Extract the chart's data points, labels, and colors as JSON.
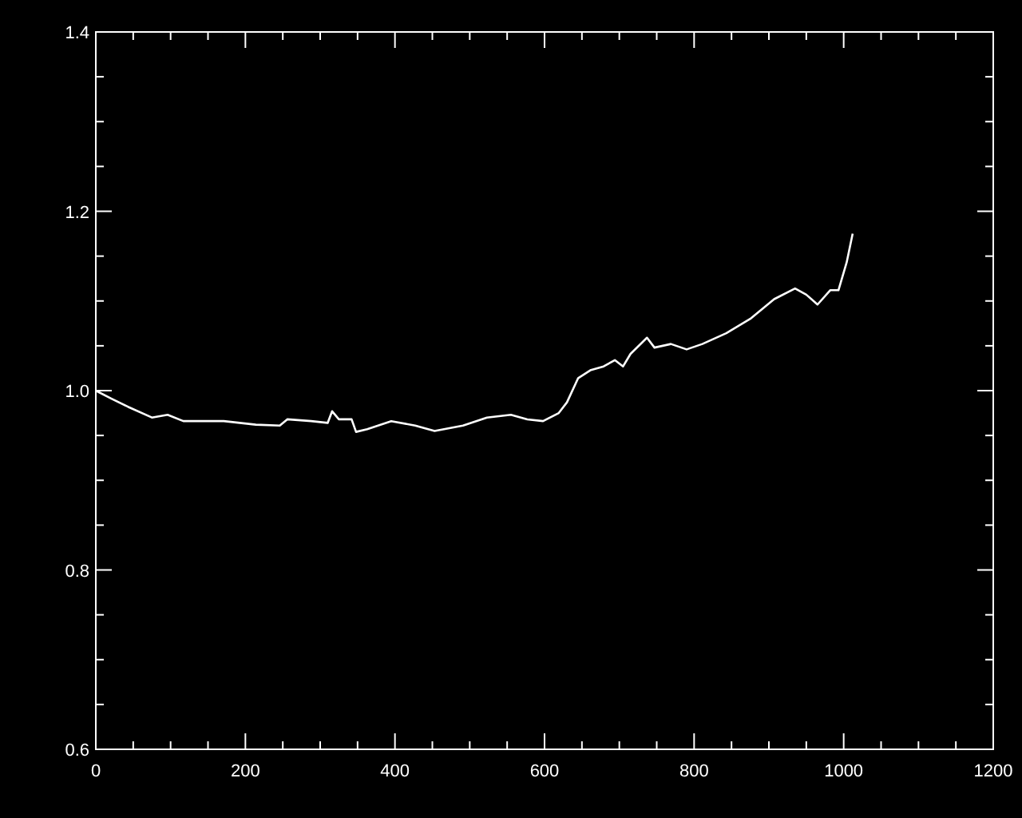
{
  "chart_data": {
    "type": "line",
    "xlim": [
      0,
      1200
    ],
    "ylim": [
      0.6,
      1.4
    ],
    "xticks": [
      0,
      {
        "value": 50,
        "label": null
      },
      {
        "value": 100,
        "label": null
      },
      {
        "value": 150,
        "label": null
      },
      200,
      {
        "value": 250,
        "label": null
      },
      {
        "value": 300,
        "label": null
      },
      {
        "value": 350,
        "label": null
      },
      400,
      {
        "value": 450,
        "label": null
      },
      {
        "value": 500,
        "label": null
      },
      {
        "value": 550,
        "label": null
      },
      600,
      {
        "value": 650,
        "label": null
      },
      {
        "value": 700,
        "label": null
      },
      {
        "value": 750,
        "label": null
      },
      800,
      {
        "value": 850,
        "label": null
      },
      {
        "value": 900,
        "label": null
      },
      {
        "value": 950,
        "label": null
      },
      1000,
      {
        "value": 1050,
        "label": null
      },
      {
        "value": 1100,
        "label": null
      },
      {
        "value": 1150,
        "label": null
      },
      1200
    ],
    "yticks": [
      0.6,
      {
        "value": 0.65,
        "label": null
      },
      {
        "value": 0.7,
        "label": null
      },
      {
        "value": 0.75,
        "label": null
      },
      0.8,
      {
        "value": 0.85,
        "label": null
      },
      {
        "value": 0.9,
        "label": null
      },
      {
        "value": 0.95,
        "label": null
      },
      {
        "value": 1.0,
        "label": "1.0"
      },
      {
        "value": 1.05,
        "label": null
      },
      {
        "value": 1.1,
        "label": null
      },
      {
        "value": 1.15,
        "label": null
      },
      1.2,
      {
        "value": 1.25,
        "label": null
      },
      {
        "value": 1.3,
        "label": null
      },
      {
        "value": 1.35,
        "label": null
      },
      1.4
    ],
    "grid": false,
    "marker": "none",
    "line_style": "solid",
    "series": [
      {
        "color": "#ffffff",
        "x": [
          0,
          21,
          43,
          75,
          96,
          117,
          171,
          214,
          246,
          256,
          288,
          310,
          316,
          325,
          342,
          348,
          363,
          395,
          427,
          453,
          491,
          523,
          555,
          577,
          598,
          619,
          630,
          645,
          662,
          679,
          694,
          705,
          715,
          737,
          747,
          769,
          790,
          811,
          843,
          875,
          907,
          935,
          950,
          965,
          982,
          993,
          1004,
          1012
        ],
        "values": [
          1.0,
          0.991,
          0.982,
          0.97,
          0.973,
          0.966,
          0.966,
          0.962,
          0.961,
          0.968,
          0.966,
          0.964,
          0.977,
          0.968,
          0.968,
          0.954,
          0.957,
          0.966,
          0.961,
          0.955,
          0.961,
          0.97,
          0.973,
          0.968,
          0.966,
          0.975,
          0.987,
          1.014,
          1.023,
          1.027,
          1.034,
          1.027,
          1.041,
          1.059,
          1.048,
          1.052,
          1.046,
          1.052,
          1.064,
          1.08,
          1.102,
          1.114,
          1.107,
          1.096,
          1.112,
          1.112,
          1.143,
          1.175
        ]
      }
    ]
  }
}
